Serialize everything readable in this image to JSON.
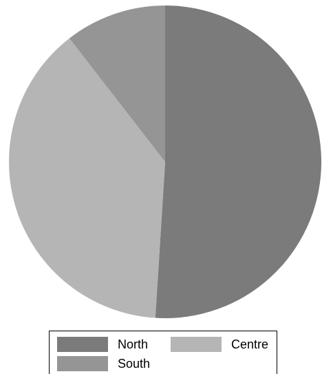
{
  "chart_data": {
    "type": "pie",
    "title": "",
    "categories": [
      "North",
      "Centre",
      "South"
    ],
    "values": [
      51,
      38.5,
      10.5
    ],
    "colors": [
      "#7b7b7b",
      "#b5b5b5",
      "#959595"
    ],
    "start_angle_deg": 0,
    "direction": "clockwise",
    "legend_position": "bottom",
    "legend": [
      {
        "label": "North",
        "color": "#7b7b7b"
      },
      {
        "label": "Centre",
        "color": "#b5b5b5"
      },
      {
        "label": "South",
        "color": "#959595"
      }
    ]
  }
}
